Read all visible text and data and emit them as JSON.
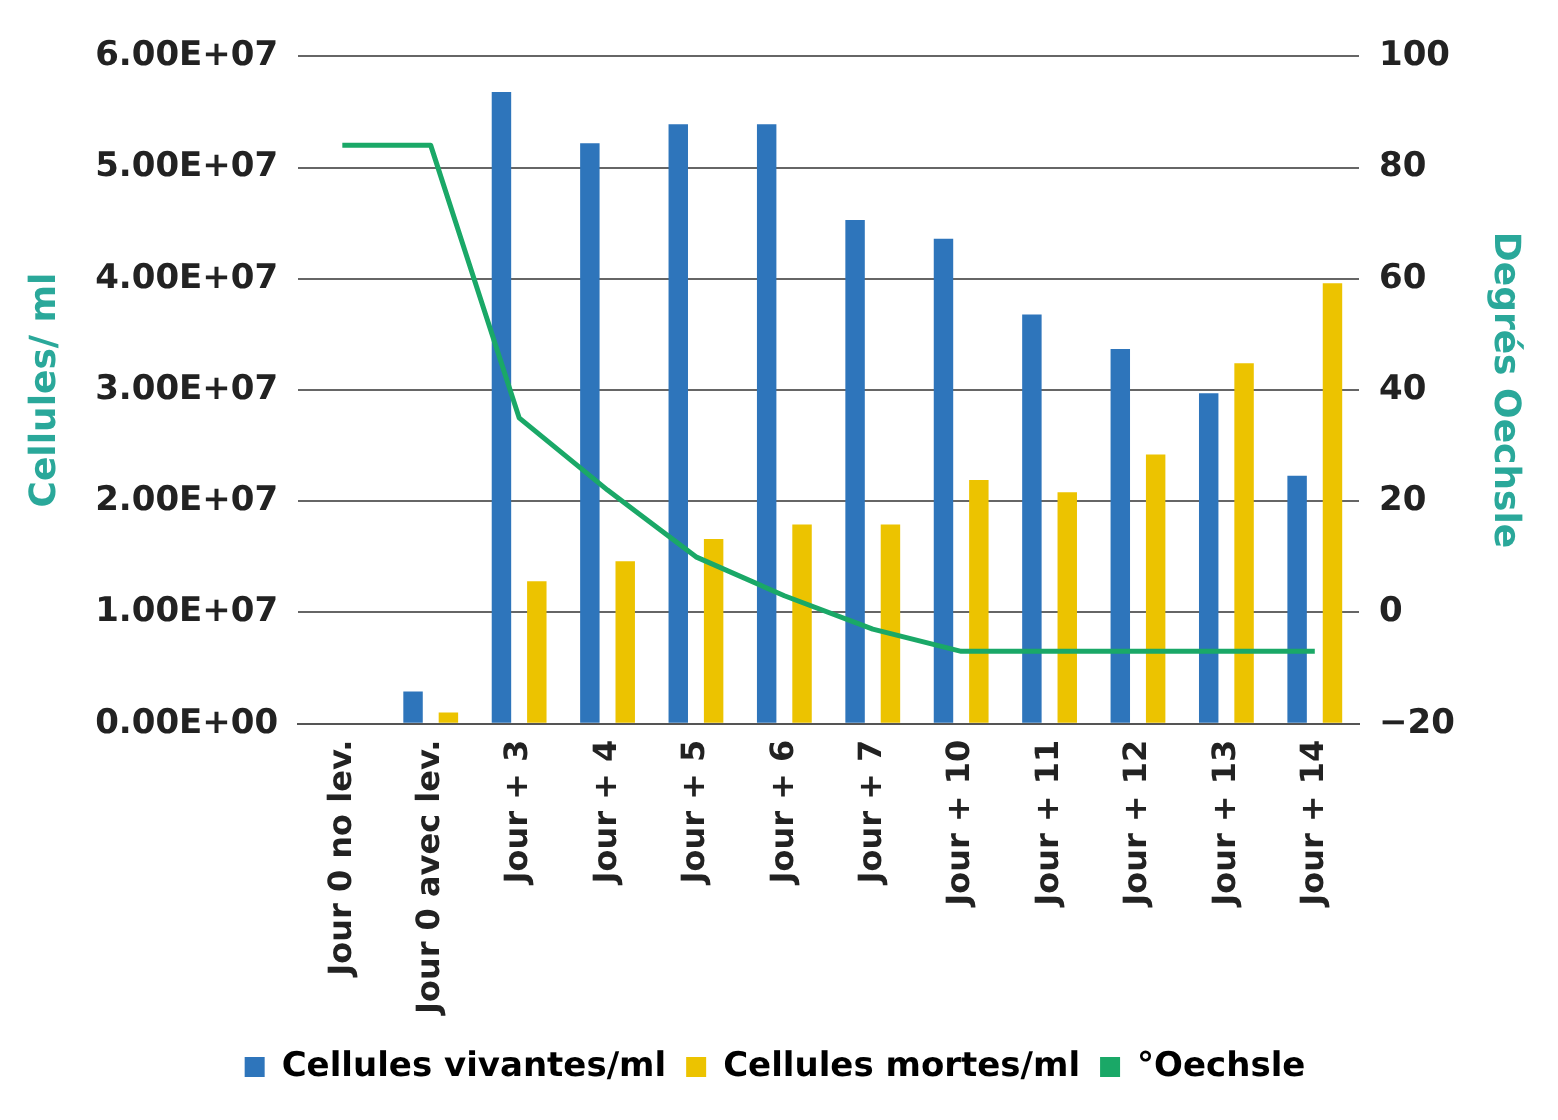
{
  "chart_data": {
    "type": "bar",
    "ylabel": "Cellules/ ml",
    "y2label": "Degrés Oechsle",
    "categories": [
      "Jour 0 no lev.",
      "Jour 0 avec lev.",
      "Jour + 3",
      "Jour + 4",
      "Jour + 5",
      "Jour + 6",
      "Jour + 7",
      "Jour + 10",
      "Jour + 11",
      "Jour + 12",
      "Jour + 13",
      "Jour + 14"
    ],
    "series": [
      {
        "name": "Cellules vivantes/ml",
        "color": "#2e75bb",
        "values": [
          0,
          2900000,
          56800000,
          52200000,
          53900000,
          53900000,
          45300000,
          43600000,
          36800000,
          33700000,
          29700000,
          22300000
        ]
      },
      {
        "name": "Cellules mortes/ml",
        "color": "#ecc300",
        "values": [
          0,
          1000000,
          12800000,
          14600000,
          16600000,
          17900000,
          17900000,
          21900000,
          20800000,
          24200000,
          32400000,
          39600000
        ]
      },
      {
        "name": "°Oechsle",
        "color": "#1aa867",
        "type": "line",
        "axis": "y2",
        "values": [
          84,
          84,
          35,
          22,
          10,
          3,
          -3,
          -7,
          -7,
          -7,
          -7,
          -7
        ]
      }
    ],
    "ylim": [
      0,
      60000000
    ],
    "yticks": [
      {
        "value": 0,
        "label": "0.00E+00"
      },
      {
        "value": 10000000,
        "label": "1.00E+07"
      },
      {
        "value": 20000000,
        "label": "2.00E+07"
      },
      {
        "value": 30000000,
        "label": "3.00E+07"
      },
      {
        "value": 40000000,
        "label": "4.00E+07"
      },
      {
        "value": 50000000,
        "label": "5.00E+07"
      },
      {
        "value": 60000000,
        "label": "6.00E+07"
      }
    ],
    "y2lim": [
      -20,
      100
    ],
    "y2ticks": [
      -20,
      0,
      20,
      40,
      60,
      80,
      100
    ],
    "grid": "y",
    "legend": "bottom",
    "marker": "none",
    "line_style": "solid"
  }
}
